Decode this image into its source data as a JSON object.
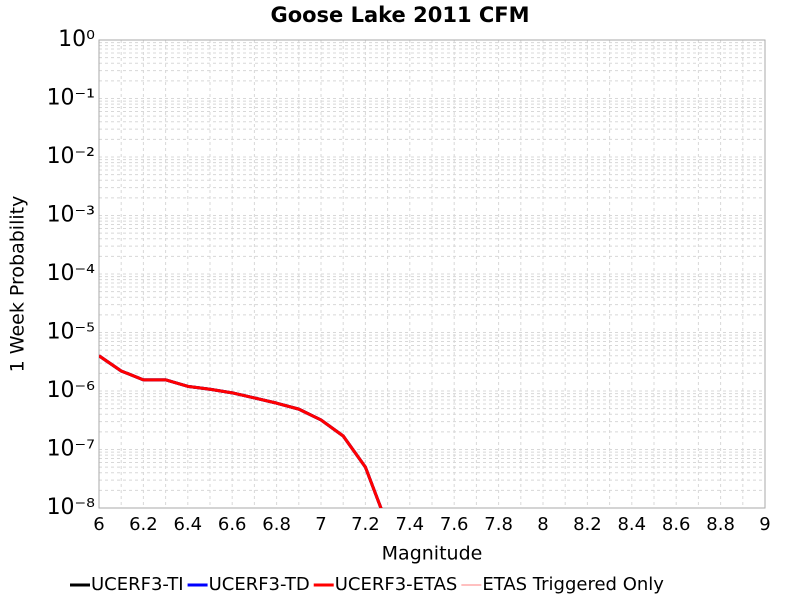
{
  "chart_data": {
    "type": "line",
    "title": "Goose Lake 2011 CFM",
    "xlabel": "Magnitude",
    "ylabel": "1 Week Probability",
    "x": [
      6.0,
      6.1,
      6.2,
      6.3,
      6.4,
      6.5,
      6.6,
      6.7,
      6.8,
      6.9,
      7.0,
      7.1,
      7.2,
      7.3
    ],
    "series": [
      {
        "name": "UCERF3-TI",
        "color": "#000000",
        "width": 3,
        "values": [
          4e-06,
          2.2e-06,
          1.55e-06,
          1.55e-06,
          1.2e-06,
          1.07e-06,
          9.3e-07,
          7.6e-07,
          6.2e-07,
          4.9e-07,
          3.2e-07,
          1.7e-07,
          5e-08,
          5e-09
        ]
      },
      {
        "name": "UCERF3-TD",
        "color": "#0000ff",
        "width": 3,
        "values": [
          4e-06,
          2.2e-06,
          1.55e-06,
          1.55e-06,
          1.2e-06,
          1.07e-06,
          9.3e-07,
          7.6e-07,
          6.2e-07,
          4.9e-07,
          3.2e-07,
          1.7e-07,
          5e-08,
          5e-09
        ]
      },
      {
        "name": "UCERF3-ETAS",
        "color": "#ff0000",
        "width": 3,
        "values": [
          4e-06,
          2.2e-06,
          1.55e-06,
          1.55e-06,
          1.2e-06,
          1.07e-06,
          9.3e-07,
          7.6e-07,
          6.2e-07,
          4.9e-07,
          3.2e-07,
          1.7e-07,
          5e-08,
          5e-09
        ]
      },
      {
        "name": "ETAS Triggered Only",
        "color": "#ff8080",
        "width": 1,
        "values": [
          null,
          null,
          null,
          null,
          null,
          null,
          null,
          null,
          null,
          null,
          null,
          null,
          null,
          null
        ]
      }
    ],
    "xlim": [
      6,
      9
    ],
    "xticks": [
      6,
      6.2,
      6.4,
      6.6,
      6.8,
      7,
      7.2,
      7.4,
      7.6,
      7.8,
      8,
      8.2,
      8.4,
      8.6,
      8.8,
      9
    ],
    "ylim": [
      1e-08,
      1
    ],
    "ylog": true,
    "yticks": [
      {
        "value": 1e-08,
        "label": "10⁻⁸"
      },
      {
        "value": 1e-07,
        "label": "10⁻⁷"
      },
      {
        "value": 1e-06,
        "label": "10⁻⁶"
      },
      {
        "value": 1e-05,
        "label": "10⁻⁵"
      },
      {
        "value": 0.0001,
        "label": "10⁻⁴"
      },
      {
        "value": 0.001,
        "label": "10⁻³"
      },
      {
        "value": 0.01,
        "label": "10⁻²"
      },
      {
        "value": 0.1,
        "label": "10⁻¹"
      },
      {
        "value": 1,
        "label": "10⁰"
      }
    ],
    "grid": true,
    "legend": "bottom"
  }
}
